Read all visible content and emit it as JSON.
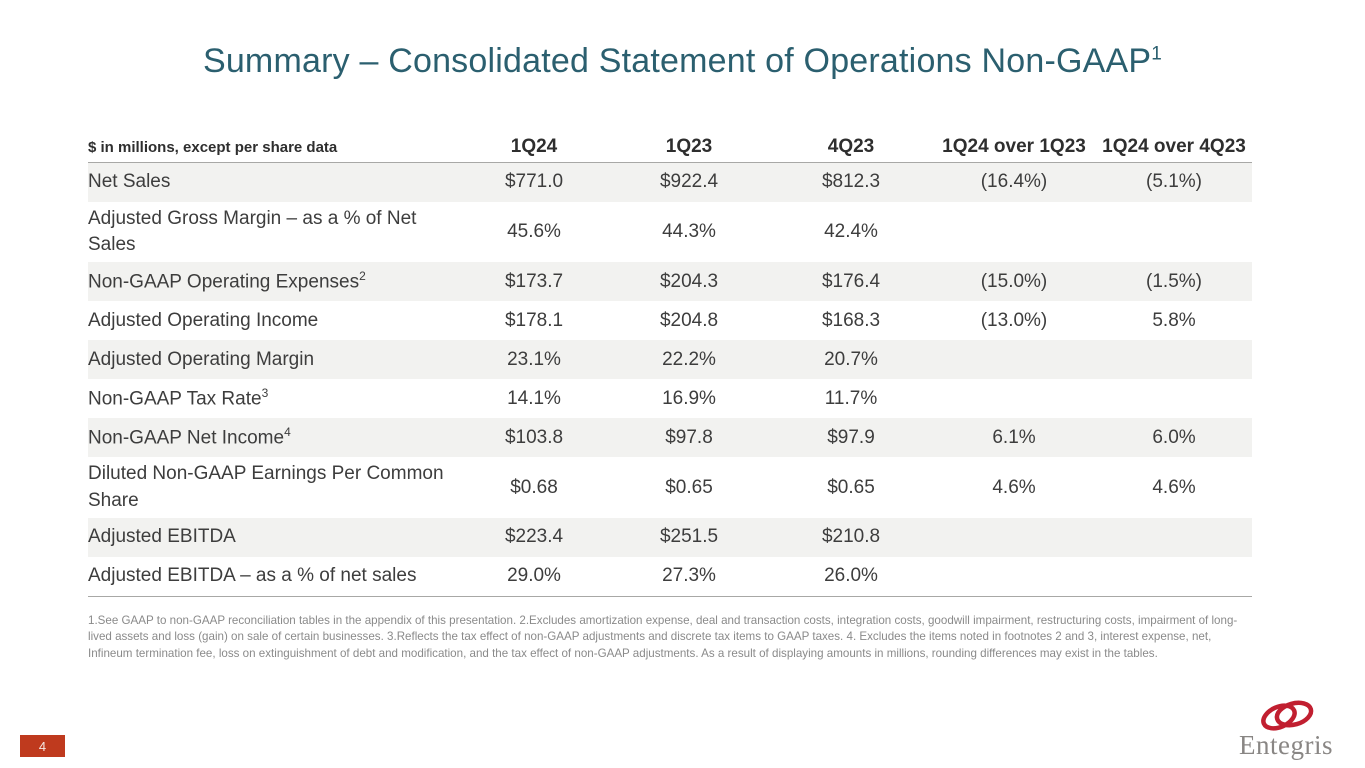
{
  "slide": {
    "title": "Summary – Consolidated Statement of Operations Non-GAAP",
    "title_superscript": "1",
    "page_number": "4"
  },
  "table": {
    "header": {
      "label": "$ in millions, except per share data",
      "columns": [
        "1Q24",
        "1Q23",
        "4Q23",
        "1Q24 over 1Q23",
        "1Q24 over 4Q23"
      ]
    },
    "rows": [
      {
        "label": "Net Sales",
        "sup": "",
        "values": [
          "$771.0",
          "$922.4",
          "$812.3",
          "(16.4%)",
          "(5.1%)"
        ],
        "shaded": true
      },
      {
        "label": "Adjusted Gross Margin – as a % of Net Sales",
        "sup": "",
        "values": [
          "45.6%",
          "44.3%",
          "42.4%",
          "",
          ""
        ],
        "shaded": false
      },
      {
        "label": "Non-GAAP Operating Expenses",
        "sup": "2",
        "values": [
          "$173.7",
          "$204.3",
          "$176.4",
          "(15.0%)",
          "(1.5%)"
        ],
        "shaded": true
      },
      {
        "label": "Adjusted Operating Income",
        "sup": "",
        "values": [
          "$178.1",
          "$204.8",
          "$168.3",
          "(13.0%)",
          "5.8%"
        ],
        "shaded": false
      },
      {
        "label": "Adjusted Operating Margin",
        "sup": "",
        "values": [
          "23.1%",
          "22.2%",
          "20.7%",
          "",
          ""
        ],
        "shaded": true
      },
      {
        "label": "Non-GAAP Tax Rate",
        "sup": "3",
        "values": [
          "14.1%",
          "16.9%",
          "11.7%",
          "",
          ""
        ],
        "shaded": false
      },
      {
        "label": "Non-GAAP Net Income",
        "sup": "4",
        "values": [
          "$103.8",
          "$97.8",
          "$97.9",
          "6.1%",
          "6.0%"
        ],
        "shaded": true
      },
      {
        "label": "Diluted Non-GAAP Earnings Per Common Share",
        "sup": "",
        "values": [
          "$0.68",
          "$0.65",
          "$0.65",
          "4.6%",
          "4.6%"
        ],
        "shaded": false
      },
      {
        "label": "Adjusted EBITDA",
        "sup": "",
        "values": [
          "$223.4",
          "$251.5",
          "$210.8",
          "",
          ""
        ],
        "shaded": true
      },
      {
        "label": "Adjusted EBITDA – as a % of net sales",
        "sup": "",
        "values": [
          "29.0%",
          "27.3%",
          "26.0%",
          "",
          ""
        ],
        "shaded": false
      }
    ]
  },
  "footnotes": "1.See GAAP to non-GAAP reconciliation tables in the appendix of this presentation. 2.Excludes amortization expense, deal and transaction costs, integration costs, goodwill impairment, restructuring costs, impairment of long-lived assets and loss (gain) on sale of certain businesses. 3.Reflects the tax effect of non-GAAP adjustments and discrete tax items to GAAP taxes. 4. Excludes the items noted in footnotes 2 and 3, interest expense, net, Infineum termination fee, loss on extinguishment of debt and modification, and the tax effect of non-GAAP adjustments. As a result of displaying amounts in millions, rounding differences may exist in the tables.",
  "logo": {
    "text": "Entegris"
  },
  "colors": {
    "title_teal": "#2B5F6F",
    "row_stripe": "#F2F2F0",
    "body_text": "#3D3D3D",
    "rule_gray": "#A8A8A6",
    "footnote_gray": "#8A8A8A",
    "page_box_red": "#BF3A1E",
    "logo_red": "#C11F30",
    "logo_gray": "#898684"
  }
}
